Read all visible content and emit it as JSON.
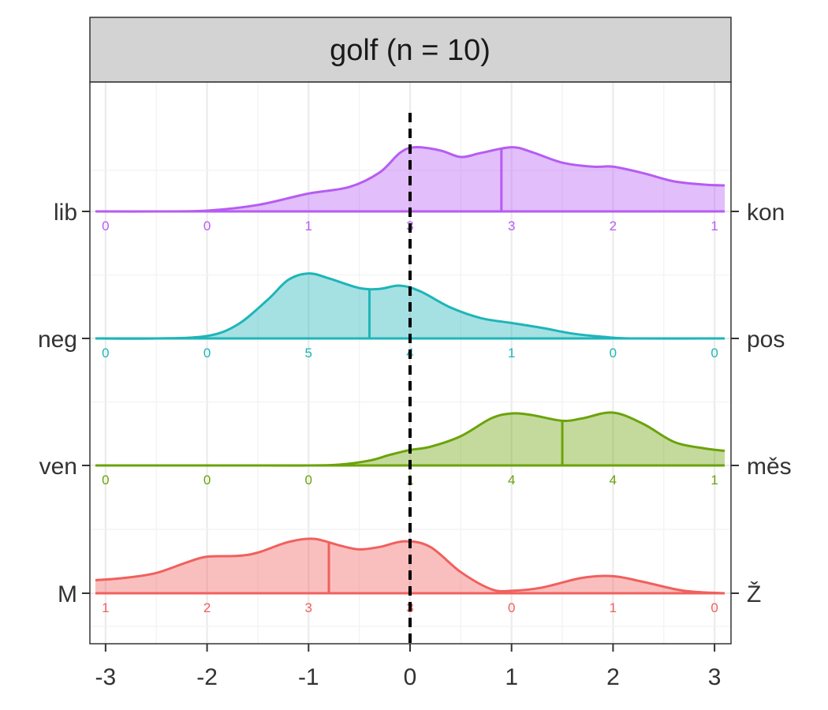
{
  "chart_data": {
    "type": "ridgeline-density",
    "facet_title": "golf (n = 10)",
    "x_axis": {
      "range": [
        -3.1,
        3.1
      ],
      "ticks": [
        -3,
        -2,
        -1,
        0,
        1,
        2,
        3
      ],
      "tick_labels": [
        "-3",
        "-2",
        "-1",
        "0",
        "1",
        "2",
        "3"
      ]
    },
    "reference_line_x": 0,
    "count_positions": [
      -3,
      -2,
      -1,
      0,
      1,
      2,
      3
    ],
    "rows": [
      {
        "left_label": "lib",
        "right_label": "kon",
        "color": "#B65CF2",
        "median": 0.9,
        "counts": [
          "0",
          "0",
          "1",
          "3",
          "3",
          "2",
          "1"
        ],
        "density": [
          [
            -3.1,
            0
          ],
          [
            -2.5,
            0
          ],
          [
            -2.0,
            0.01
          ],
          [
            -1.5,
            0.08
          ],
          [
            -1.0,
            0.22
          ],
          [
            -0.6,
            0.3
          ],
          [
            -0.3,
            0.48
          ],
          [
            -0.1,
            0.72
          ],
          [
            0.05,
            0.79
          ],
          [
            0.3,
            0.75
          ],
          [
            0.5,
            0.67
          ],
          [
            0.7,
            0.72
          ],
          [
            1.0,
            0.79
          ],
          [
            1.2,
            0.73
          ],
          [
            1.5,
            0.6
          ],
          [
            1.8,
            0.55
          ],
          [
            2.0,
            0.55
          ],
          [
            2.3,
            0.47
          ],
          [
            2.6,
            0.37
          ],
          [
            2.9,
            0.33
          ],
          [
            3.1,
            0.32
          ]
        ]
      },
      {
        "left_label": "neg",
        "right_label": "pos",
        "color": "#1EB5B8",
        "median": -0.4,
        "counts": [
          "0",
          "0",
          "5",
          "4",
          "1",
          "0",
          "0"
        ],
        "density": [
          [
            -3.1,
            0
          ],
          [
            -2.5,
            0
          ],
          [
            -2.0,
            0.03
          ],
          [
            -1.7,
            0.17
          ],
          [
            -1.4,
            0.48
          ],
          [
            -1.2,
            0.72
          ],
          [
            -1.0,
            0.8
          ],
          [
            -0.8,
            0.74
          ],
          [
            -0.5,
            0.62
          ],
          [
            -0.3,
            0.61
          ],
          [
            -0.1,
            0.65
          ],
          [
            0.1,
            0.58
          ],
          [
            0.4,
            0.38
          ],
          [
            0.7,
            0.25
          ],
          [
            1.0,
            0.19
          ],
          [
            1.3,
            0.13
          ],
          [
            1.6,
            0.06
          ],
          [
            1.9,
            0.02
          ],
          [
            2.2,
            0
          ],
          [
            3.1,
            0
          ]
        ]
      },
      {
        "left_label": "ven",
        "right_label": "měs",
        "color": "#6BA30A",
        "median": 1.5,
        "counts": [
          "0",
          "0",
          "0",
          "1",
          "4",
          "4",
          "1"
        ],
        "density": [
          [
            -3.1,
            0
          ],
          [
            -1.5,
            0
          ],
          [
            -1.0,
            0
          ],
          [
            -0.7,
            0.01
          ],
          [
            -0.4,
            0.06
          ],
          [
            -0.2,
            0.13
          ],
          [
            0.0,
            0.19
          ],
          [
            0.2,
            0.23
          ],
          [
            0.5,
            0.36
          ],
          [
            0.8,
            0.58
          ],
          [
            1.0,
            0.64
          ],
          [
            1.2,
            0.62
          ],
          [
            1.5,
            0.55
          ],
          [
            1.7,
            0.58
          ],
          [
            2.0,
            0.65
          ],
          [
            2.3,
            0.51
          ],
          [
            2.6,
            0.29
          ],
          [
            2.9,
            0.21
          ],
          [
            3.1,
            0.18
          ]
        ]
      },
      {
        "left_label": "M",
        "right_label": "Ž",
        "color": "#F0605D",
        "median": -0.8,
        "counts": [
          "1",
          "2",
          "3",
          "3",
          "0",
          "1",
          "0"
        ],
        "density": [
          [
            -3.1,
            0.16
          ],
          [
            -2.8,
            0.19
          ],
          [
            -2.5,
            0.25
          ],
          [
            -2.2,
            0.38
          ],
          [
            -2.0,
            0.45
          ],
          [
            -1.7,
            0.46
          ],
          [
            -1.5,
            0.5
          ],
          [
            -1.2,
            0.63
          ],
          [
            -0.95,
            0.67
          ],
          [
            -0.7,
            0.59
          ],
          [
            -0.5,
            0.54
          ],
          [
            -0.3,
            0.57
          ],
          [
            -0.05,
            0.64
          ],
          [
            0.2,
            0.57
          ],
          [
            0.5,
            0.26
          ],
          [
            0.8,
            0.05
          ],
          [
            1.0,
            0.03
          ],
          [
            1.3,
            0.07
          ],
          [
            1.7,
            0.19
          ],
          [
            2.0,
            0.21
          ],
          [
            2.3,
            0.14
          ],
          [
            2.7,
            0.03
          ],
          [
            3.1,
            0
          ]
        ]
      }
    ]
  }
}
